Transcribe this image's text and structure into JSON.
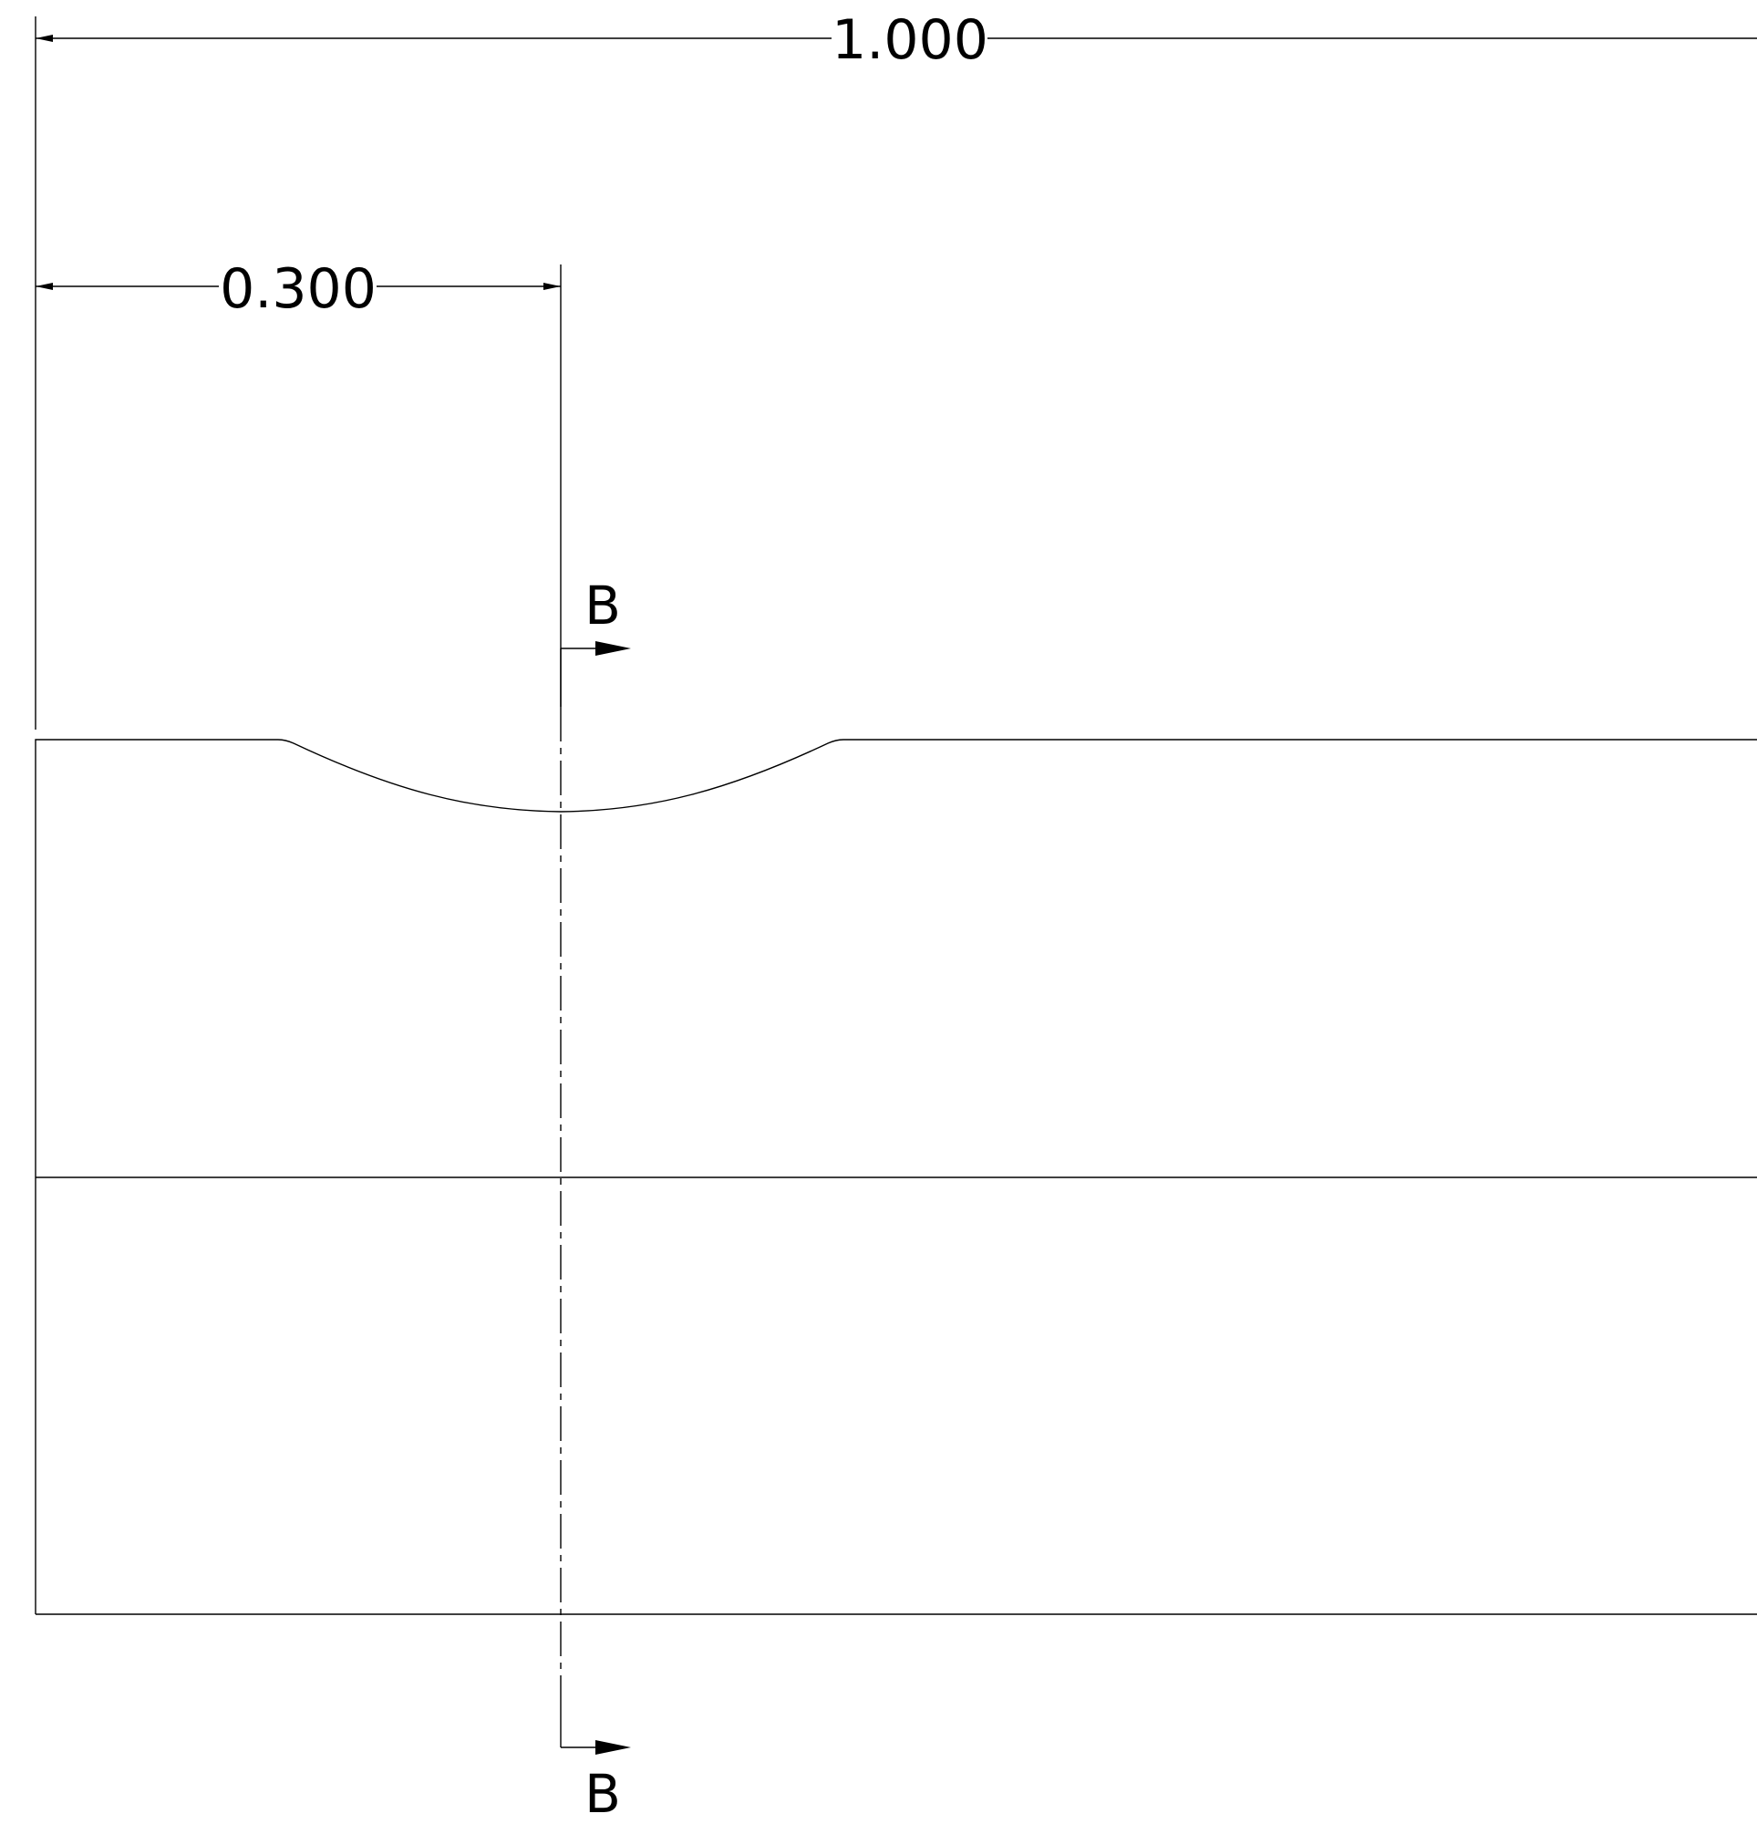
{
  "drawing": {
    "dimensions": {
      "overall_length": {
        "value": "1.000"
      },
      "section_position": {
        "value": "0.300"
      }
    },
    "section_marker": {
      "label_top": "B",
      "label_bottom": "B"
    }
  }
}
